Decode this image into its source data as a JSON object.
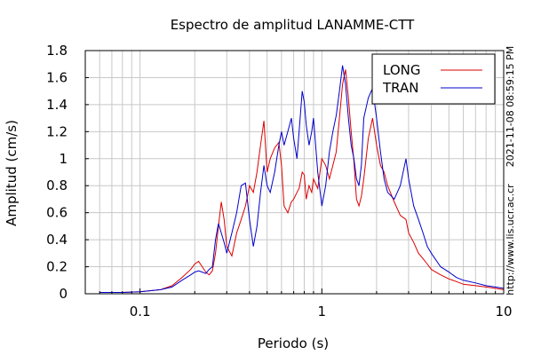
{
  "chart_data": {
    "type": "line",
    "title": "Espectro de amplitud LANAMME-CTT",
    "xlabel": "Periodo (s)",
    "ylabel": "Amplitud (cm/s)",
    "x_scale": "log",
    "xlim": [
      0.05,
      10
    ],
    "ylim": [
      0,
      1.8
    ],
    "x_ticks": [
      {
        "v": 0.1,
        "label": "0.1"
      },
      {
        "v": 1,
        "label": "1"
      },
      {
        "v": 10,
        "label": "10"
      }
    ],
    "y_ticks": [
      {
        "v": 0,
        "label": "0"
      },
      {
        "v": 0.2,
        "label": "0.2"
      },
      {
        "v": 0.4,
        "label": "0.4"
      },
      {
        "v": 0.6,
        "label": "0.6"
      },
      {
        "v": 0.8,
        "label": "0.8"
      },
      {
        "v": 1,
        "label": "1"
      },
      {
        "v": 1.2,
        "label": "1.2"
      },
      {
        "v": 1.4,
        "label": "1.4"
      },
      {
        "v": 1.6,
        "label": "1.6"
      },
      {
        "v": 1.8,
        "label": "1.8"
      }
    ],
    "grid": true,
    "legend_position": "top-right",
    "side_text": [
      "2021-11-08 08:59:15 PM",
      "http://www.lis.ucr.ac.cr"
    ],
    "series": [
      {
        "name": "LONG",
        "color": "#dd0000",
        "x": [
          0.06,
          0.08,
          0.1,
          0.13,
          0.15,
          0.17,
          0.19,
          0.2,
          0.21,
          0.22,
          0.23,
          0.24,
          0.25,
          0.26,
          0.27,
          0.28,
          0.29,
          0.3,
          0.32,
          0.34,
          0.36,
          0.38,
          0.4,
          0.42,
          0.44,
          0.46,
          0.48,
          0.5,
          0.52,
          0.55,
          0.58,
          0.6,
          0.62,
          0.65,
          0.68,
          0.7,
          0.73,
          0.75,
          0.78,
          0.8,
          0.82,
          0.85,
          0.88,
          0.9,
          0.95,
          1.0,
          1.05,
          1.1,
          1.15,
          1.2,
          1.25,
          1.3,
          1.35,
          1.4,
          1.45,
          1.5,
          1.55,
          1.6,
          1.65,
          1.7,
          1.8,
          1.9,
          2.0,
          2.1,
          2.2,
          2.3,
          2.5,
          2.7,
          2.9,
          3.0,
          3.2,
          3.4,
          3.6,
          3.8,
          4.0,
          4.5,
          5.0,
          5.5,
          6.0,
          7.0,
          8.0,
          9.0,
          10.0
        ],
        "y": [
          0.01,
          0.01,
          0.015,
          0.03,
          0.06,
          0.12,
          0.18,
          0.22,
          0.24,
          0.2,
          0.16,
          0.14,
          0.17,
          0.3,
          0.5,
          0.68,
          0.55,
          0.35,
          0.28,
          0.45,
          0.55,
          0.65,
          0.8,
          0.75,
          0.9,
          1.1,
          1.28,
          0.9,
          1.0,
          1.08,
          1.12,
          0.95,
          0.65,
          0.6,
          0.68,
          0.7,
          0.75,
          0.78,
          0.9,
          0.88,
          0.7,
          0.8,
          0.75,
          0.85,
          0.78,
          1.0,
          0.95,
          0.85,
          0.95,
          1.05,
          1.3,
          1.55,
          1.66,
          1.45,
          1.2,
          0.98,
          0.7,
          0.65,
          0.72,
          0.85,
          1.15,
          1.3,
          1.1,
          0.95,
          0.9,
          0.8,
          0.68,
          0.58,
          0.55,
          0.45,
          0.38,
          0.3,
          0.26,
          0.22,
          0.18,
          0.14,
          0.11,
          0.09,
          0.07,
          0.06,
          0.05,
          0.04,
          0.03
        ]
      },
      {
        "name": "TRAN",
        "color": "#0000cc",
        "x": [
          0.06,
          0.08,
          0.1,
          0.13,
          0.15,
          0.17,
          0.19,
          0.2,
          0.21,
          0.22,
          0.23,
          0.24,
          0.25,
          0.26,
          0.27,
          0.28,
          0.29,
          0.3,
          0.32,
          0.34,
          0.36,
          0.38,
          0.4,
          0.42,
          0.44,
          0.46,
          0.48,
          0.5,
          0.52,
          0.55,
          0.58,
          0.6,
          0.62,
          0.65,
          0.68,
          0.7,
          0.73,
          0.75,
          0.78,
          0.8,
          0.82,
          0.85,
          0.88,
          0.9,
          0.95,
          1.0,
          1.05,
          1.1,
          1.15,
          1.2,
          1.25,
          1.3,
          1.35,
          1.4,
          1.45,
          1.5,
          1.55,
          1.6,
          1.65,
          1.7,
          1.8,
          1.9,
          2.0,
          2.1,
          2.2,
          2.3,
          2.5,
          2.7,
          2.9,
          3.0,
          3.2,
          3.4,
          3.6,
          3.8,
          4.0,
          4.5,
          5.0,
          5.5,
          6.0,
          7.0,
          8.0,
          9.0,
          10.0
        ],
        "y": [
          0.01,
          0.01,
          0.015,
          0.03,
          0.05,
          0.1,
          0.14,
          0.16,
          0.17,
          0.16,
          0.15,
          0.18,
          0.2,
          0.4,
          0.52,
          0.45,
          0.38,
          0.3,
          0.45,
          0.6,
          0.8,
          0.82,
          0.55,
          0.35,
          0.5,
          0.75,
          0.95,
          0.8,
          0.75,
          0.9,
          1.1,
          1.2,
          1.1,
          1.2,
          1.3,
          1.15,
          1.0,
          1.2,
          1.5,
          1.42,
          1.25,
          1.1,
          1.2,
          1.3,
          0.9,
          0.65,
          0.8,
          1.05,
          1.2,
          1.32,
          1.5,
          1.69,
          1.55,
          1.3,
          1.1,
          1.0,
          0.85,
          0.8,
          0.95,
          1.3,
          1.45,
          1.52,
          1.3,
          1.05,
          0.85,
          0.75,
          0.7,
          0.8,
          1.0,
          0.85,
          0.65,
          0.55,
          0.45,
          0.35,
          0.3,
          0.2,
          0.16,
          0.12,
          0.1,
          0.08,
          0.06,
          0.05,
          0.04
        ]
      }
    ]
  }
}
